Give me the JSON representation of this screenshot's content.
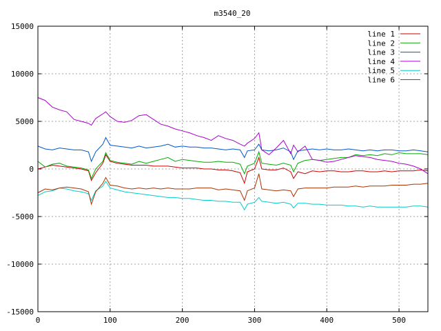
{
  "chart_data": {
    "type": "line",
    "title": "m3540_20",
    "xlabel": "",
    "ylabel": "",
    "xlim": [
      0,
      540
    ],
    "ylim": [
      -15000,
      15000
    ],
    "x_ticks": [
      0,
      100,
      200,
      300,
      400,
      500
    ],
    "y_ticks": [
      -15000,
      -10000,
      -5000,
      0,
      5000,
      10000,
      15000
    ],
    "grid": true,
    "legend_position": "top-right",
    "x": [
      0,
      10,
      20,
      30,
      40,
      50,
      60,
      70,
      74,
      80,
      90,
      94,
      100,
      110,
      120,
      130,
      140,
      150,
      160,
      170,
      180,
      190,
      200,
      210,
      220,
      230,
      240,
      250,
      260,
      270,
      280,
      286,
      290,
      300,
      306,
      310,
      320,
      330,
      340,
      350,
      354,
      360,
      370,
      380,
      390,
      400,
      410,
      420,
      430,
      440,
      450,
      460,
      470,
      480,
      490,
      500,
      510,
      520,
      530,
      540
    ],
    "series": [
      {
        "name": "line 1",
        "color": "#cc0000",
        "values": [
          0,
          200,
          400,
          300,
          200,
          100,
          0,
          -200,
          -1200,
          -400,
          600,
          1500,
          800,
          600,
          500,
          400,
          400,
          400,
          300,
          300,
          300,
          200,
          100,
          100,
          100,
          0,
          0,
          -100,
          -100,
          -200,
          -400,
          -1500,
          -300,
          0,
          1200,
          0,
          -100,
          -100,
          100,
          -300,
          -1000,
          -300,
          -500,
          -200,
          -300,
          -200,
          -200,
          -300,
          -300,
          -200,
          -200,
          -300,
          -300,
          -200,
          -300,
          -200,
          -200,
          -200,
          -100,
          -200
        ]
      },
      {
        "name": "line 2",
        "color": "#00aa00",
        "values": [
          800,
          200,
          500,
          600,
          300,
          200,
          100,
          -100,
          -1000,
          0,
          800,
          1700,
          900,
          700,
          600,
          500,
          800,
          600,
          800,
          1000,
          1200,
          800,
          1000,
          900,
          800,
          700,
          700,
          800,
          700,
          700,
          500,
          -500,
          300,
          600,
          1800,
          600,
          500,
          400,
          600,
          400,
          -300,
          600,
          900,
          1000,
          900,
          1000,
          1100,
          1200,
          1200,
          1500,
          1400,
          1500,
          1400,
          1600,
          1500,
          1700,
          1600,
          1600,
          1600,
          1500
        ]
      },
      {
        "name": "line 3",
        "color": "#0055cc",
        "values": [
          2400,
          2100,
          2000,
          2200,
          2100,
          2000,
          2000,
          1800,
          800,
          1800,
          2600,
          3300,
          2500,
          2400,
          2300,
          2200,
          2400,
          2200,
          2300,
          2400,
          2600,
          2300,
          2400,
          2300,
          2300,
          2200,
          2200,
          2100,
          2000,
          2100,
          2000,
          1200,
          1900,
          2000,
          2600,
          2000,
          1900,
          2000,
          2200,
          1800,
          1000,
          1900,
          2000,
          2100,
          2000,
          2100,
          2000,
          2000,
          2100,
          2000,
          1900,
          2000,
          1900,
          2000,
          2000,
          1900,
          1900,
          2000,
          1900,
          1800
        ]
      },
      {
        "name": "line 4",
        "color": "#aa00cc",
        "values": [
          7500,
          7200,
          6500,
          6200,
          6000,
          5200,
          5000,
          4800,
          4600,
          5300,
          5800,
          6000,
          5500,
          5000,
          4900,
          5100,
          5600,
          5700,
          5200,
          4700,
          4500,
          4200,
          4000,
          3800,
          3500,
          3300,
          3000,
          3500,
          3200,
          3000,
          2600,
          2400,
          2700,
          3200,
          3800,
          2000,
          1500,
          2200,
          3000,
          1600,
          2500,
          1800,
          2400,
          1000,
          900,
          700,
          800,
          1000,
          1200,
          1400,
          1300,
          1200,
          1000,
          900,
          800,
          600,
          500,
          300,
          0,
          -500
        ]
      },
      {
        "name": "line 5",
        "color": "#00cccc",
        "values": [
          -2800,
          -2400,
          -2300,
          -2000,
          -2100,
          -2300,
          -2400,
          -2600,
          -3300,
          -2300,
          -1800,
          -1300,
          -2000,
          -2200,
          -2400,
          -2500,
          -2600,
          -2700,
          -2800,
          -2900,
          -3000,
          -3000,
          -3100,
          -3100,
          -3200,
          -3300,
          -3300,
          -3400,
          -3400,
          -3500,
          -3500,
          -4300,
          -3700,
          -3500,
          -3000,
          -3400,
          -3500,
          -3600,
          -3500,
          -3700,
          -4100,
          -3600,
          -3600,
          -3700,
          -3700,
          -3800,
          -3800,
          -3800,
          -3900,
          -3900,
          -4000,
          -3900,
          -4000,
          -4000,
          -4000,
          -4000,
          -4000,
          -3900,
          -3900,
          -4000
        ]
      },
      {
        "name": "line 6",
        "color": "#aa3300",
        "values": [
          -2500,
          -2100,
          -2200,
          -2000,
          -1900,
          -2000,
          -2100,
          -2400,
          -3700,
          -2400,
          -1500,
          -900,
          -1700,
          -1800,
          -2000,
          -2100,
          -2000,
          -2100,
          -2000,
          -2100,
          -2000,
          -2100,
          -2100,
          -2100,
          -2000,
          -2000,
          -2000,
          -2200,
          -2100,
          -2200,
          -2300,
          -3300,
          -2300,
          -2000,
          -500,
          -2100,
          -2200,
          -2300,
          -2200,
          -2300,
          -2900,
          -2100,
          -2000,
          -2000,
          -2000,
          -2000,
          -1900,
          -1900,
          -1900,
          -1800,
          -1900,
          -1800,
          -1800,
          -1800,
          -1700,
          -1700,
          -1700,
          -1600,
          -1600,
          -1500
        ]
      }
    ]
  }
}
